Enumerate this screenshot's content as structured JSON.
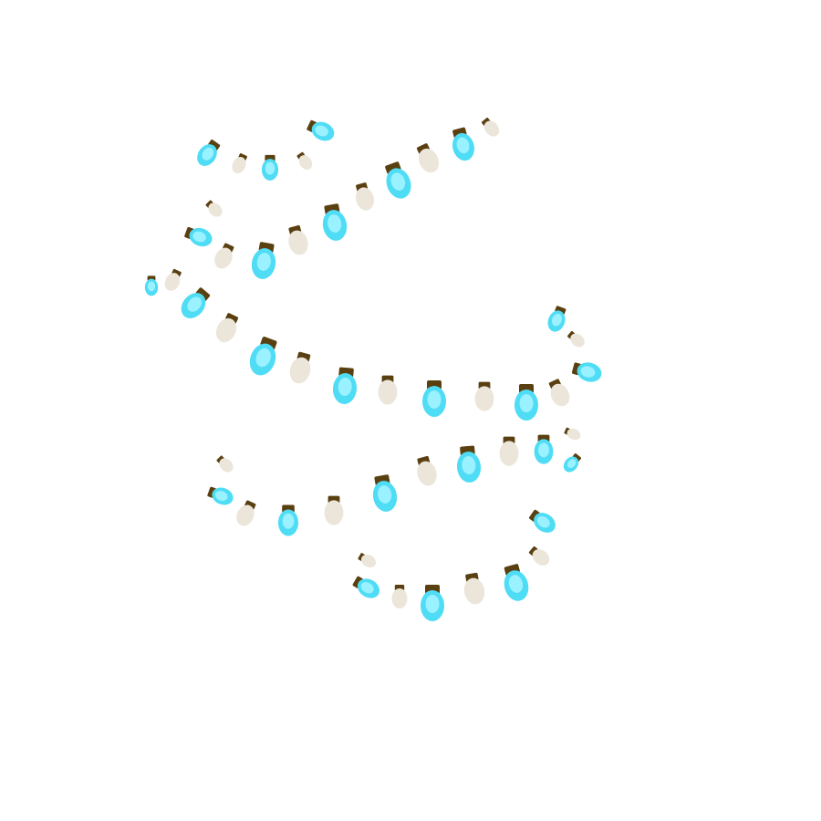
{
  "illustration": {
    "subject": "string-lights",
    "background": "#ffffff",
    "colors": {
      "bulb_lit": "#4fdcf5",
      "bulb_lit_highlight": "#9af1ff",
      "bulb_unlit": "#ebe5da",
      "socket": "#5a4010"
    },
    "strand_count": 5
  }
}
